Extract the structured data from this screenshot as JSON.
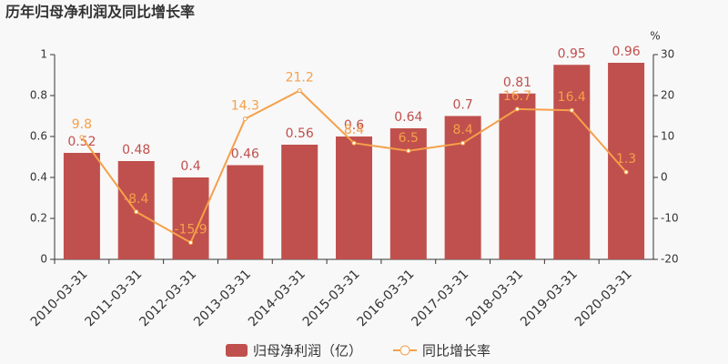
{
  "chart_data": {
    "type": "bar-line",
    "title": "历年归母净利润及同比增长率",
    "categories": [
      "2010-03-31",
      "2011-03-31",
      "2012-03-31",
      "2013-03-31",
      "2014-03-31",
      "2015-03-31",
      "2016-03-31",
      "2017-03-31",
      "2018-03-31",
      "2019-03-31",
      "2020-03-31"
    ],
    "series": [
      {
        "name": "归母净利润（亿）",
        "color": "#c0504d",
        "values": [
          0.52,
          0.48,
          0.4,
          0.46,
          0.56,
          0.6,
          0.64,
          0.7,
          0.81,
          0.95,
          0.96
        ]
      },
      {
        "name": "同比增长率",
        "color": "#f5a04a",
        "axis": "y2",
        "values": [
          9.8,
          -8.4,
          -15.9,
          14.3,
          21.2,
          8.4,
          6.5,
          8.4,
          16.7,
          16.4,
          1.3
        ]
      }
    ],
    "ylim": [
      0,
      1
    ],
    "yticks": [
      0,
      0.2,
      0.4,
      0.6,
      0.8,
      1
    ],
    "y2lim": [
      -20,
      30
    ],
    "y2ticks": [
      -20,
      -10,
      0,
      10,
      20,
      30
    ],
    "y2label": "%"
  }
}
